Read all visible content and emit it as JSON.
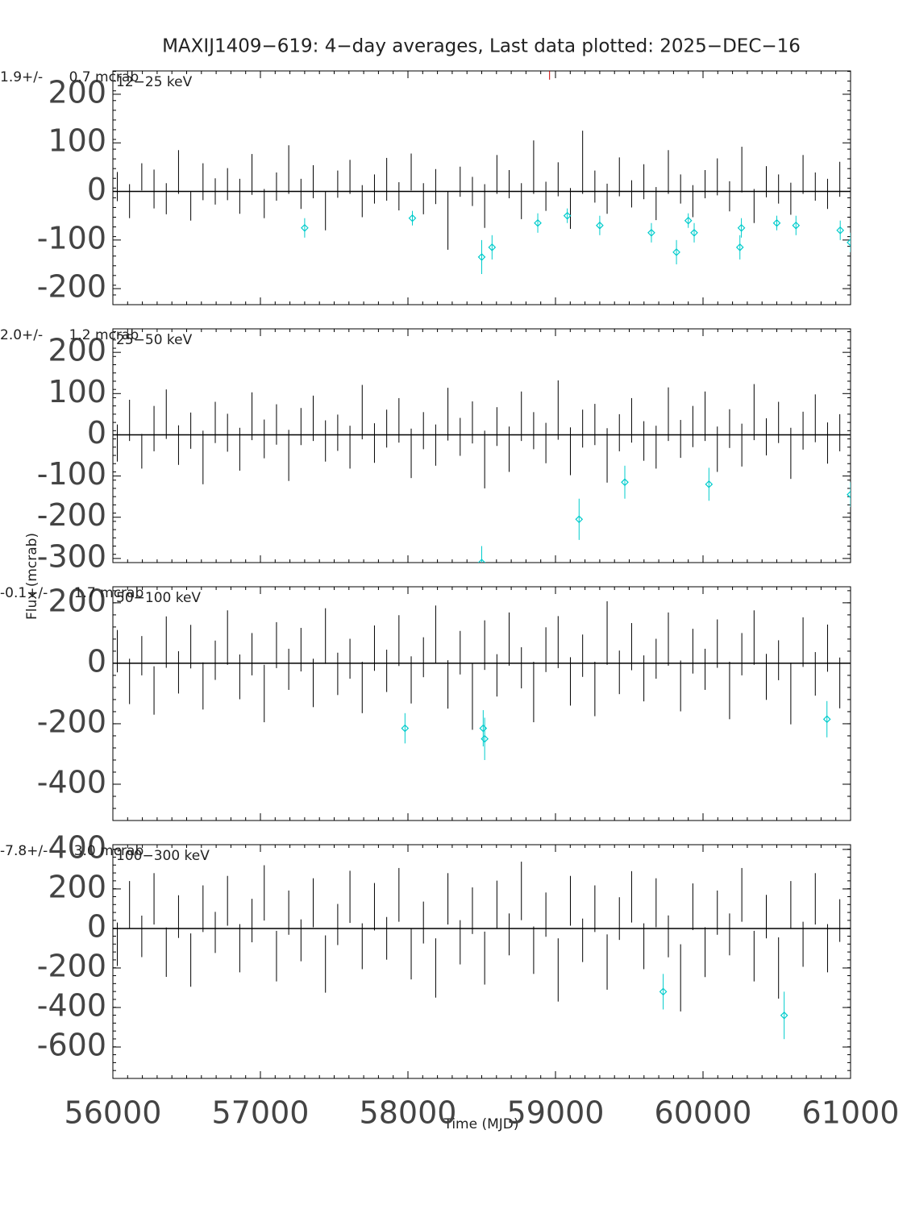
{
  "title": "MAXIJ1409−619:  4−day averages,  Last data plotted: 2025−DEC−16",
  "xlabel": "Time (MJD)",
  "ylabel": "Flux (mcrab)",
  "chart_data": [
    {
      "type": "errorbar",
      "band": "12−25 keV",
      "stat": "1.9+/-      0.7 mcrab",
      "xlim": [
        56000,
        61000
      ],
      "xticks": [
        56000,
        57000,
        58000,
        59000,
        60000,
        61000
      ],
      "ylim": [
        -233,
        248
      ],
      "yticks": [
        -200,
        -100,
        0,
        100,
        200
      ],
      "x": [
        56030,
        56113,
        56196,
        56279,
        56362,
        56445,
        56528,
        56611,
        56694,
        56777,
        56860,
        56943,
        57026,
        57109,
        57192,
        57275,
        57358,
        57441,
        57524,
        57607,
        57690,
        57773,
        57856,
        57939,
        58022,
        58105,
        58188,
        58271,
        58354,
        58437,
        58520,
        58603,
        58686,
        58769,
        58852,
        58935,
        59018,
        59101,
        59184,
        59267,
        59350,
        59433,
        59516,
        59599,
        59682,
        59765,
        59848,
        59931,
        60014,
        60097,
        60180,
        60263,
        60346,
        60429,
        60512,
        60595,
        60678,
        60761,
        60844,
        60927
      ],
      "series": [
        {
          "color": "#000000",
          "values": [
            10,
            -20,
            30,
            5,
            -15,
            40,
            -30,
            20,
            0,
            15,
            -10,
            35,
            -25,
            10,
            45,
            -5,
            20,
            -40,
            15,
            30,
            -20,
            5,
            25,
            -10,
            40,
            -15,
            10,
            -60,
            20,
            0,
            -30,
            35,
            15,
            -20,
            50,
            -10,
            25,
            -35,
            60,
            10,
            -15,
            30,
            -5,
            20,
            -25,
            40,
            5,
            -20,
            15,
            30,
            -10,
            45,
            -30,
            20,
            5,
            -15,
            35,
            10,
            -5,
            25
          ],
          "errors": [
            30,
            35,
            28,
            40,
            32,
            45,
            30,
            38,
            27,
            33,
            36,
            42,
            30,
            29,
            50,
            31,
            34,
            40,
            28,
            35,
            33,
            30,
            44,
            29,
            38,
            32,
            36,
            60,
            31,
            30,
            45,
            40,
            29,
            37,
            55,
            30,
            35,
            42,
            65,
            33,
            31,
            40,
            28,
            36,
            34,
            45,
            30,
            33,
            29,
            38,
            31,
            47,
            35,
            32,
            30,
            33,
            40,
            29,
            31,
            36
          ]
        },
        {
          "color": "#00cccc",
          "marker": "diamond",
          "x": [
            57300,
            58030,
            58500,
            58570,
            58880,
            59080,
            59300,
            59650,
            59820,
            59900,
            59940,
            60250,
            60260,
            60500,
            60630,
            60930,
            61000
          ],
          "values": [
            -75,
            -55,
            -135,
            -115,
            -65,
            -50,
            -70,
            -85,
            -125,
            -60,
            -85,
            -115,
            -75,
            -65,
            -70,
            -80,
            -105
          ],
          "errors": [
            20,
            15,
            35,
            25,
            20,
            15,
            20,
            20,
            25,
            15,
            20,
            25,
            20,
            15,
            20,
            20,
            20
          ]
        },
        {
          "color": "#cc0000",
          "x": [
            58960
          ],
          "values": [
            245
          ],
          "errors": [
            15
          ]
        }
      ]
    },
    {
      "type": "errorbar",
      "band": "25−50 keV",
      "stat": "2.0+/-      1.2 mcrab",
      "xlim": [
        56000,
        61000
      ],
      "xticks": [
        56000,
        57000,
        58000,
        59000,
        60000,
        61000
      ],
      "ylim": [
        -310,
        257
      ],
      "yticks": [
        -300,
        -200,
        -100,
        0,
        100,
        200
      ],
      "x": [
        56030,
        56113,
        56196,
        56279,
        56362,
        56445,
        56528,
        56611,
        56694,
        56777,
        56860,
        56943,
        57026,
        57109,
        57192,
        57275,
        57358,
        57441,
        57524,
        57607,
        57690,
        57773,
        57856,
        57939,
        58022,
        58105,
        58188,
        58271,
        58354,
        58437,
        58520,
        58603,
        58686,
        58769,
        58852,
        58935,
        59018,
        59101,
        59184,
        59267,
        59350,
        59433,
        59516,
        59599,
        59682,
        59765,
        59848,
        59931,
        60014,
        60097,
        60180,
        60263,
        60346,
        60429,
        60512,
        60595,
        60678,
        60761,
        60844,
        60927
      ],
      "series": [
        {
          "color": "#000000",
          "values": [
            -20,
            35,
            -40,
            15,
            50,
            -25,
            10,
            -55,
            30,
            5,
            -35,
            45,
            -10,
            25,
            -50,
            20,
            40,
            -15,
            5,
            -30,
            55,
            -20,
            15,
            35,
            -45,
            10,
            -25,
            50,
            -5,
            30,
            -60,
            20,
            -35,
            45,
            10,
            -20,
            60,
            -40,
            15,
            25,
            -50,
            5,
            35,
            -15,
            -30,
            50,
            -10,
            20,
            45,
            -35,
            15,
            -25,
            55,
            -5,
            30,
            -45,
            10,
            40,
            -20,
            5
          ],
          "errors": [
            45,
            50,
            42,
            55,
            60,
            48,
            44,
            65,
            50,
            46,
            52,
            58,
            47,
            49,
            62,
            45,
            55,
            50,
            44,
            52,
            66,
            48,
            46,
            54,
            60,
            45,
            50,
            64,
            46,
            51,
            70,
            47,
            55,
            60,
            45,
            49,
            72,
            58,
            46,
            50,
            66,
            45,
            54,
            48,
            52,
            65,
            46,
            50,
            60,
            55,
            47,
            52,
            68,
            45,
            50,
            62,
            46,
            58,
            50,
            45
          ]
        },
        {
          "color": "#00cccc",
          "marker": "diamond",
          "x": [
            58500,
            59160,
            59470,
            60040,
            61000
          ],
          "values": [
            -310,
            -205,
            -115,
            -120,
            -145
          ],
          "errors": [
            40,
            50,
            40,
            40,
            30
          ]
        }
      ]
    },
    {
      "type": "errorbar",
      "band": "50−100 keV",
      "stat": "-0.1+/-      1.7 mcrab",
      "xlim": [
        56000,
        61000
      ],
      "xticks": [
        56000,
        57000,
        58000,
        59000,
        60000,
        61000
      ],
      "ylim": [
        -520,
        253
      ],
      "yticks": [
        -400,
        -200,
        0,
        200
      ],
      "x": [
        56030,
        56113,
        56196,
        56279,
        56362,
        56445,
        56528,
        56611,
        56694,
        56777,
        56860,
        56943,
        57026,
        57109,
        57192,
        57275,
        57358,
        57441,
        57524,
        57607,
        57690,
        57773,
        57856,
        57939,
        58022,
        58105,
        58188,
        58271,
        58354,
        58437,
        58520,
        58603,
        58686,
        58769,
        58852,
        58935,
        59018,
        59101,
        59184,
        59267,
        59350,
        59433,
        59516,
        59599,
        59682,
        59765,
        59848,
        59931,
        60014,
        60097,
        60180,
        60263,
        60346,
        60429,
        60512,
        60595,
        60678,
        60761,
        60844,
        60927
      ],
      "series": [
        {
          "color": "#000000",
          "values": [
            40,
            -60,
            25,
            -90,
            70,
            -30,
            55,
            -75,
            10,
            85,
            -45,
            30,
            -100,
            60,
            -20,
            45,
            -65,
            90,
            -35,
            15,
            -80,
            50,
            -25,
            75,
            -55,
            20,
            95,
            -70,
            35,
            -110,
            60,
            -40,
            80,
            -15,
            -95,
            45,
            70,
            -60,
            25,
            -85,
            100,
            -30,
            55,
            -50,
            15,
            80,
            -75,
            40,
            -20,
            65,
            -90,
            30,
            85,
            -45,
            10,
            -100,
            70,
            -35,
            50,
            -65
          ],
          "errors": [
            70,
            75,
            65,
            80,
            85,
            70,
            72,
            78,
            65,
            90,
            74,
            70,
            95,
            76,
            68,
            72,
            80,
            92,
            70,
            66,
            85,
            75,
            70,
            84,
            78,
            66,
            96,
            80,
            72,
            110,
            82,
            70,
            88,
            68,
            100,
            74,
            86,
            80,
            70,
            90,
            105,
            72,
            78,
            76,
            66,
            88,
            84,
            74,
            68,
            80,
            95,
            70,
            90,
            76,
            66,
            102,
            82,
            72,
            78,
            84
          ]
        },
        {
          "color": "#00cccc",
          "marker": "diamond",
          "x": [
            57980,
            58510,
            58520,
            60840
          ],
          "values": [
            -215,
            -215,
            -250,
            -185
          ],
          "errors": [
            50,
            60,
            70,
            60
          ]
        }
      ]
    },
    {
      "type": "errorbar",
      "band": "100−300 keV",
      "stat": "-7.8+/-      3.0 mcrab",
      "xlim": [
        56000,
        61000
      ],
      "xticks": [
        56000,
        57000,
        58000,
        59000,
        60000,
        61000
      ],
      "ylim": [
        -759,
        424
      ],
      "yticks": [
        -600,
        -400,
        -200,
        0,
        200,
        400
      ],
      "x": [
        56030,
        56113,
        56196,
        56279,
        56362,
        56445,
        56528,
        56611,
        56694,
        56777,
        56860,
        56943,
        57026,
        57109,
        57192,
        57275,
        57358,
        57441,
        57524,
        57607,
        57690,
        57773,
        57856,
        57939,
        58022,
        58105,
        58188,
        58271,
        58354,
        58437,
        58520,
        58603,
        58686,
        58769,
        58852,
        58935,
        59018,
        59101,
        59184,
        59267,
        59350,
        59433,
        59516,
        59599,
        59682,
        59765,
        59848,
        59931,
        60014,
        60097,
        60180,
        60263,
        60346,
        60429,
        60512,
        60595,
        60678,
        60761,
        60844,
        60927
      ],
      "series": [
        {
          "color": "#000000",
          "values": [
            -80,
            120,
            -40,
            150,
            -120,
            60,
            -160,
            100,
            -20,
            140,
            -100,
            40,
            180,
            -140,
            80,
            -60,
            130,
            -180,
            20,
            160,
            -90,
            110,
            -50,
            170,
            -130,
            30,
            -200,
            150,
            -70,
            90,
            -150,
            120,
            -30,
            190,
            -110,
            70,
            -210,
            140,
            -60,
            100,
            -170,
            50,
            160,
            -90,
            130,
            -40,
            -250,
            110,
            -120,
            80,
            -30,
            170,
            -140,
            60,
            -200,
            120,
            -80,
            150,
            -100,
            40
          ],
          "errors": [
            110,
            120,
            105,
            130,
            125,
            108,
            135,
            118,
            104,
            126,
            122,
            110,
            140,
            128,
            112,
            106,
            124,
            145,
            104,
            132,
            116,
            120,
            108,
            136,
            128,
            106,
            150,
            130,
            112,
            118,
            134,
            122,
            106,
            148,
            120,
            112,
            160,
            126,
            110,
            118,
            140,
            108,
            130,
            116,
            124,
            106,
            170,
            118,
            126,
            112,
            106,
            136,
            128,
            110,
            155,
            120,
            114,
            130,
            122,
            108
          ]
        },
        {
          "color": "#00cccc",
          "marker": "diamond",
          "x": [
            59730,
            60550
          ],
          "values": [
            -320,
            -440
          ],
          "errors": [
            90,
            120
          ]
        }
      ]
    }
  ]
}
